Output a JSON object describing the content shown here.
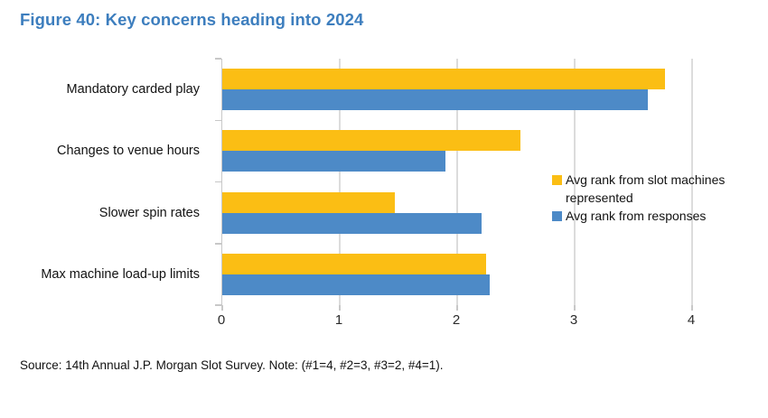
{
  "title": "Figure 40: Key concerns heading into 2024",
  "source_note": "Source: 14th Annual J.P. Morgan Slot Survey. Note: (#1=4, #2=3, #3=2, #4=1).",
  "colors": {
    "title_accent": "#3D7EBE",
    "series_machines": "#FBBE14",
    "series_responses": "#4D8AC7",
    "gridline": "#DCDCDC",
    "axis": "#C8C8C8"
  },
  "chart_data": {
    "type": "bar",
    "orientation": "horizontal",
    "title": "Figure 40: Key concerns heading into 2024",
    "categories": [
      "Mandatory carded play",
      "Changes to venue hours",
      "Slower spin rates",
      "Max machine load-up limits"
    ],
    "series": [
      {
        "name": "Avg rank from slot machines represented",
        "color": "#FBBE14",
        "values": [
          3.78,
          2.54,
          1.47,
          2.25
        ]
      },
      {
        "name": "Avg rank from responses",
        "color": "#4D8AC7",
        "values": [
          3.63,
          1.9,
          2.21,
          2.28
        ]
      }
    ],
    "xlim": [
      0,
      4
    ],
    "x_ticks": [
      "0",
      "1",
      "2",
      "3",
      "4"
    ],
    "grid": "vertical",
    "legend_position": "inside-right",
    "xlabel": "",
    "ylabel": ""
  }
}
